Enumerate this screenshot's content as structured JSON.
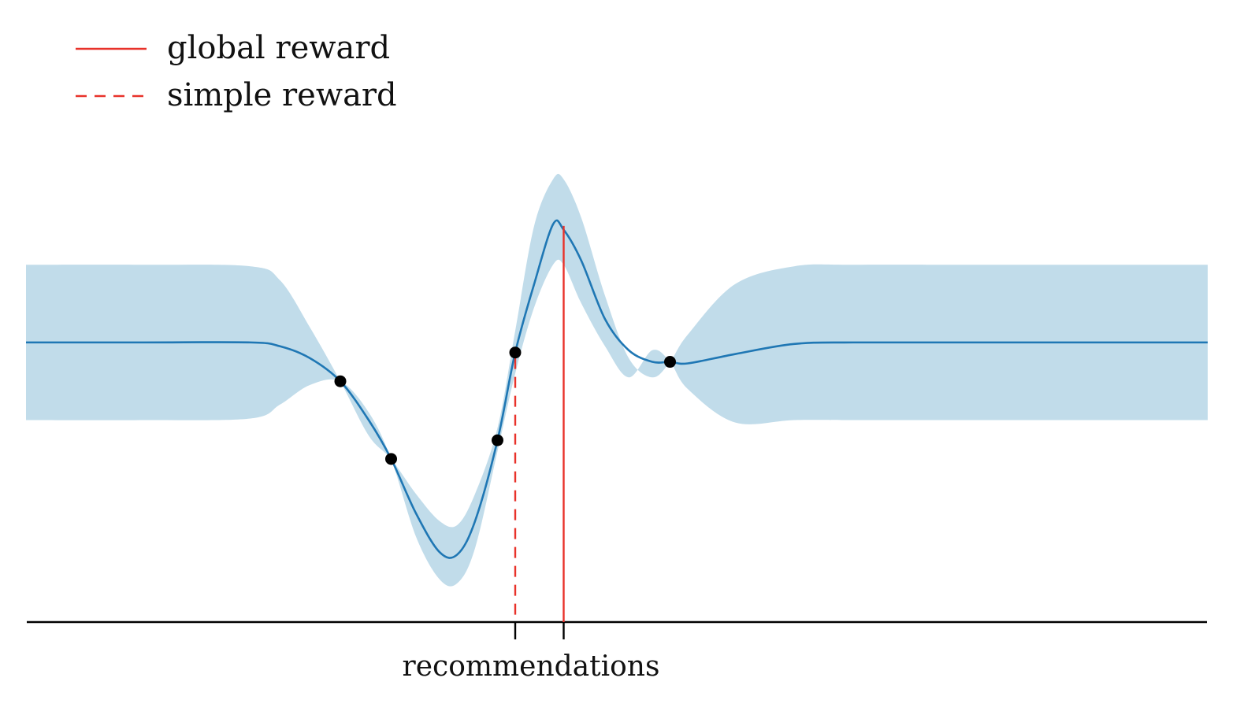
{
  "colors": {
    "mean": "#1f77b4",
    "band": "#c1dcea",
    "reward": "#e8322a",
    "axis": "#000000",
    "points": "#000000"
  },
  "chart_data": {
    "type": "line",
    "title": "",
    "xlabel": "recommendations",
    "ylabel": "",
    "xlim": [
      0,
      1
    ],
    "ylim": [
      -3.6,
      3.8
    ],
    "grid": false,
    "legend_position": "top-left",
    "legend": [
      {
        "label": "global reward",
        "style": "solid"
      },
      {
        "label": "simple reward",
        "style": "dashed"
      }
    ],
    "observations": [
      {
        "x": 0.266,
        "y": -0.5
      },
      {
        "x": 0.309,
        "y": -1.5
      },
      {
        "x": 0.399,
        "y": -1.26
      },
      {
        "x": 0.414,
        "y": -0.13
      },
      {
        "x": 0.545,
        "y": -0.25
      }
    ],
    "mean_curve": {
      "x": [
        0.0,
        0.1,
        0.19,
        0.215,
        0.24,
        0.266,
        0.29,
        0.309,
        0.33,
        0.35,
        0.365,
        0.38,
        0.399,
        0.414,
        0.43,
        0.446,
        0.455,
        0.47,
        0.49,
        0.51,
        0.53,
        0.545,
        0.56,
        0.6,
        0.65,
        0.7,
        0.8,
        1.0
      ],
      "y": [
        0.0,
        0.0,
        0.0,
        -0.05,
        -0.2,
        -0.5,
        -1.0,
        -1.5,
        -2.2,
        -2.7,
        -2.73,
        -2.3,
        -1.26,
        -0.13,
        0.75,
        1.52,
        1.45,
        1.05,
        0.3,
        -0.1,
        -0.25,
        -0.25,
        -0.27,
        -0.15,
        -0.02,
        0.0,
        0.0,
        0.0
      ]
    },
    "band_upper": {
      "x": [
        0.0,
        0.1,
        0.19,
        0.215,
        0.24,
        0.266,
        0.29,
        0.309,
        0.33,
        0.35,
        0.365,
        0.38,
        0.399,
        0.414,
        0.43,
        0.446,
        0.455,
        0.47,
        0.49,
        0.51,
        0.53,
        0.545,
        0.56,
        0.6,
        0.65,
        0.7,
        0.8,
        1.0
      ],
      "y": [
        1.0,
        1.0,
        0.98,
        0.8,
        0.2,
        -0.5,
        -1.2,
        -1.5,
        -1.95,
        -2.3,
        -2.35,
        -1.95,
        -1.1,
        0.15,
        1.5,
        2.1,
        2.1,
        1.6,
        0.6,
        -0.2,
        -0.45,
        -0.25,
        0.1,
        0.75,
        0.98,
        1.0,
        1.0,
        1.0
      ]
    },
    "band_lower": {
      "x": [
        0.0,
        0.1,
        0.19,
        0.215,
        0.24,
        0.266,
        0.29,
        0.309,
        0.33,
        0.35,
        0.365,
        0.38,
        0.399,
        0.414,
        0.43,
        0.446,
        0.455,
        0.47,
        0.49,
        0.51,
        0.53,
        0.545,
        0.56,
        0.6,
        0.65,
        0.7,
        0.8,
        1.0
      ],
      "y": [
        -1.0,
        -1.0,
        -0.98,
        -0.8,
        -0.55,
        -0.5,
        -0.9,
        -1.5,
        -2.5,
        -3.05,
        -3.1,
        -2.65,
        -1.4,
        -0.4,
        0.45,
        1.0,
        1.0,
        0.5,
        -0.05,
        -0.45,
        -0.1,
        -0.25,
        -0.6,
        -1.03,
        -1.0,
        -1.0,
        -1.0,
        -1.0
      ]
    },
    "recommendations": [
      {
        "name": "simple reward",
        "x": 0.414,
        "style": "dashed",
        "y_top": -0.2
      },
      {
        "name": "global reward",
        "x": 0.455,
        "style": "solid",
        "y_top": 1.5
      }
    ]
  }
}
